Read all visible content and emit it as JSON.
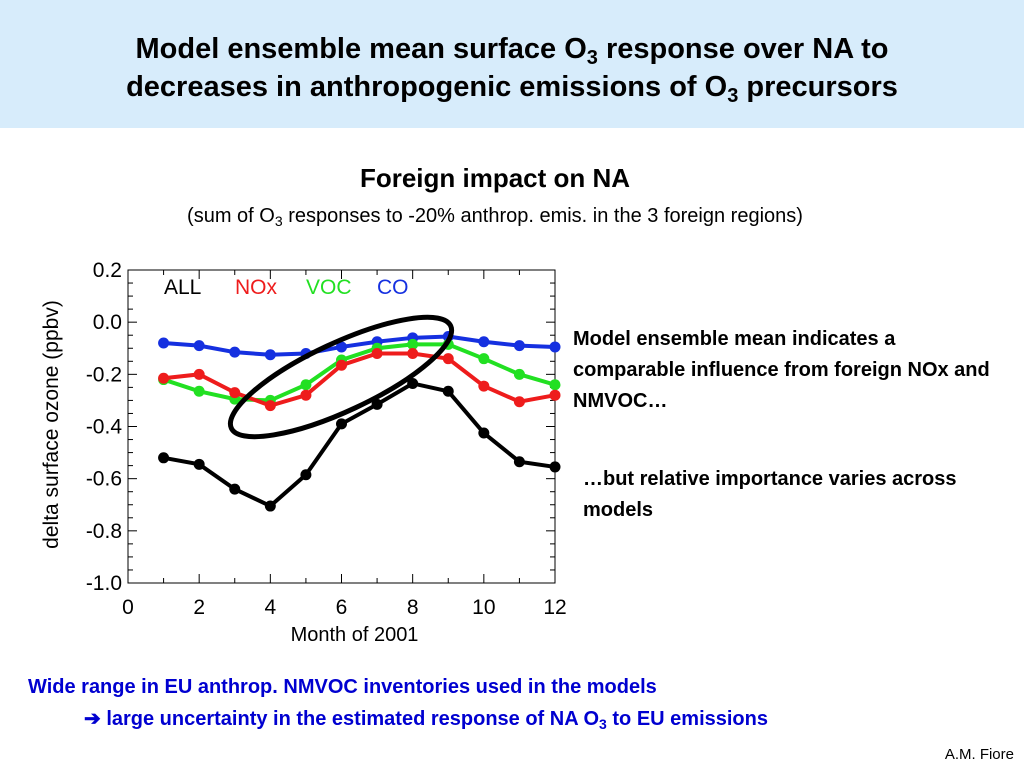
{
  "header": {
    "title_line1_pre": "Model ensemble mean surface O",
    "title_line1_sub": "3",
    "title_line1_post": " response over NA to",
    "title_line2_pre": "decreases in anthropogenic emissions of O",
    "title_line2_sub": "3",
    "title_line2_post": " precursors"
  },
  "subheading": "Foreign impact on NA",
  "subtitle": {
    "pre": "(sum of O",
    "sub": "3",
    "post": " responses to -20% anthrop. emis. in the 3 foreign regions)"
  },
  "notes": {
    "note1": "Model ensemble mean indicates a comparable influence from foreign NOx and NMVOC…",
    "note2": "…but relative importance varies across models"
  },
  "bottom": {
    "line1": "Wide range in EU anthrop. NMVOC inventories used in the models",
    "line2_arrow": "➔",
    "line2_pre": " large uncertainty in the estimated response of NA O",
    "line2_sub": "3",
    "line2_post": " to EU emissions"
  },
  "author": "A.M. Fiore",
  "colors": {
    "header_bg": "#d7ecfb",
    "all": "#000000",
    "nox": "#ee1c1c",
    "voc": "#22e022",
    "co": "#1530e0",
    "bottom_text": "#0000d0"
  },
  "chart_data": {
    "type": "line",
    "xlabel": "Month of 2001",
    "ylabel": "delta surface ozone (ppbv)",
    "xlim": [
      0,
      12
    ],
    "ylim": [
      -1.0,
      0.2
    ],
    "xticks": [
      "0",
      "2",
      "4",
      "6",
      "8",
      "10",
      "12"
    ],
    "yticks": [
      "0.2",
      "0.0",
      "-0.2",
      "-0.4",
      "-0.6",
      "-0.8",
      "-1.0"
    ],
    "x": [
      1,
      2,
      3,
      4,
      5,
      6,
      7,
      8,
      9,
      10,
      11,
      12
    ],
    "legend_position": "top-left",
    "series": [
      {
        "name": "ALL",
        "color": "#000000",
        "values": [
          -0.52,
          -0.545,
          -0.64,
          -0.705,
          -0.585,
          -0.39,
          -0.315,
          -0.235,
          -0.265,
          -0.425,
          -0.535,
          -0.555
        ]
      },
      {
        "name": "NOx",
        "color": "#ee1c1c",
        "values": [
          -0.215,
          -0.2,
          -0.27,
          -0.32,
          -0.28,
          -0.165,
          -0.12,
          -0.12,
          -0.14,
          -0.245,
          -0.305,
          -0.28
        ]
      },
      {
        "name": "VOC",
        "color": "#22e022",
        "values": [
          -0.22,
          -0.265,
          -0.295,
          -0.3,
          -0.24,
          -0.145,
          -0.1,
          -0.085,
          -0.085,
          -0.14,
          -0.2,
          -0.24
        ]
      },
      {
        "name": "CO",
        "color": "#1530e0",
        "values": [
          -0.08,
          -0.09,
          -0.115,
          -0.125,
          -0.12,
          -0.095,
          -0.075,
          -0.06,
          -0.055,
          -0.075,
          -0.09,
          -0.095
        ]
      }
    ],
    "annotation": "ellipse highlighting NOx and VOC curves for months 4–9"
  }
}
